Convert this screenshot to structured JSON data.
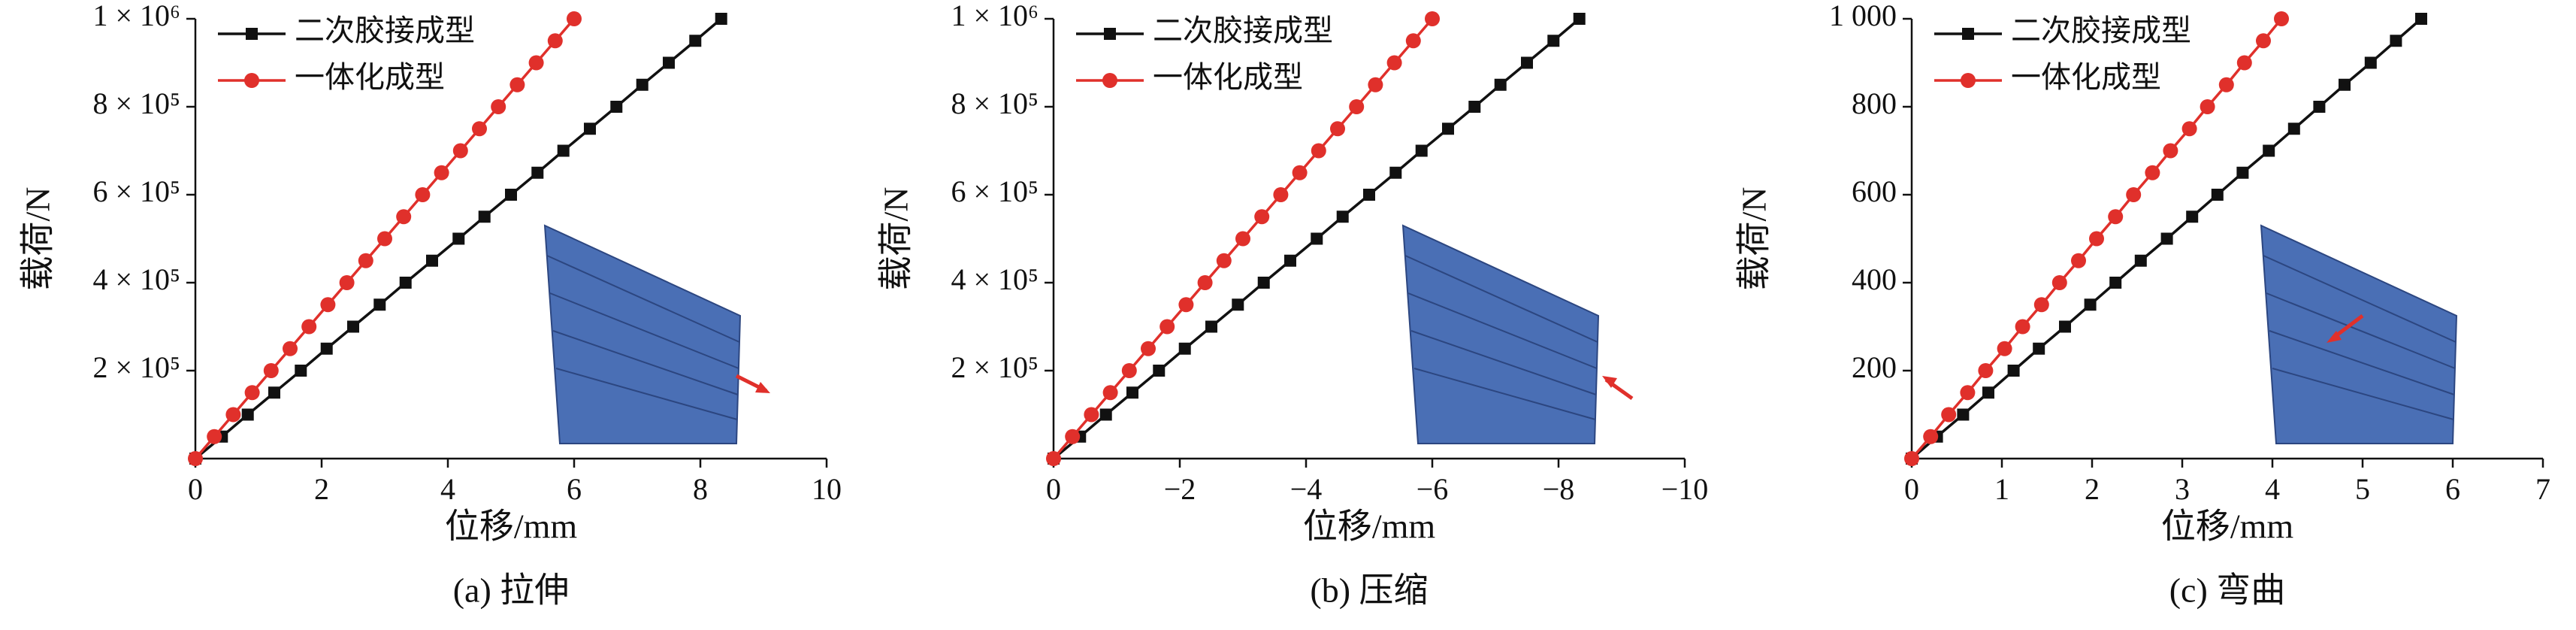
{
  "chart_data": [
    {
      "type": "line",
      "title": "(a) 拉伸",
      "xlabel": "位移/mm",
      "ylabel": "载荷/N",
      "xlim": [
        0,
        10
      ],
      "xticks": [
        0,
        2,
        4,
        6,
        8,
        10
      ],
      "ylim": [
        0,
        1000000
      ],
      "yticks": [
        {
          "value": 200000,
          "label": "2 × 10⁵"
        },
        {
          "value": 400000,
          "label": "4 × 10⁵"
        },
        {
          "value": 600000,
          "label": "6 × 10⁵"
        },
        {
          "value": 800000,
          "label": "8 × 10⁵"
        },
        {
          "value": 1000000,
          "label": "1 × 10⁶"
        }
      ],
      "series": [
        {
          "name": "二次胶接成型",
          "color": "#111111",
          "marker": "square",
          "x": [
            0,
            0.42,
            0.83,
            1.25,
            1.67,
            2.08,
            2.5,
            2.92,
            3.33,
            3.75,
            4.17,
            4.58,
            5,
            5.42,
            5.83,
            6.25,
            6.67,
            7.08,
            7.5,
            7.92,
            8.33
          ],
          "values": [
            0,
            50000,
            100000,
            150000,
            200000,
            250000,
            300000,
            350000,
            400000,
            450000,
            500000,
            550000,
            600000,
            650000,
            700000,
            750000,
            800000,
            850000,
            900000,
            950000,
            1000000
          ]
        },
        {
          "name": "一体化成型",
          "color": "#e0302b",
          "marker": "circle",
          "x": [
            0,
            0.3,
            0.6,
            0.9,
            1.2,
            1.5,
            1.8,
            2.1,
            2.4,
            2.7,
            3,
            3.3,
            3.6,
            3.9,
            4.2,
            4.5,
            4.8,
            5.1,
            5.4,
            5.7,
            6
          ],
          "values": [
            0,
            50000,
            100000,
            150000,
            200000,
            250000,
            300000,
            350000,
            400000,
            450000,
            500000,
            550000,
            600000,
            650000,
            700000,
            750000,
            800000,
            850000,
            900000,
            950000,
            1000000
          ]
        }
      ]
    },
    {
      "type": "line",
      "title": "(b) 压缩",
      "xlabel": "位移/mm",
      "ylabel": "载荷/N",
      "xlim": [
        0,
        -10
      ],
      "xticks": [
        0,
        {
          "value": -2,
          "label": "−2"
        },
        {
          "value": -4,
          "label": "−4"
        },
        {
          "value": -6,
          "label": "−6"
        },
        {
          "value": -8,
          "label": "−8"
        },
        {
          "value": -10,
          "label": "−10"
        }
      ],
      "ylim": [
        0,
        1000000
      ],
      "yticks": [
        {
          "value": 200000,
          "label": "2 × 10⁵"
        },
        {
          "value": 400000,
          "label": "4 × 10⁵"
        },
        {
          "value": 600000,
          "label": "6 × 10⁵"
        },
        {
          "value": 800000,
          "label": "8 × 10⁵"
        },
        {
          "value": 1000000,
          "label": "1 × 10⁶"
        }
      ],
      "series": [
        {
          "name": "二次胶接成型",
          "color": "#111111",
          "marker": "square",
          "x": [
            0,
            -0.42,
            -0.83,
            -1.25,
            -1.67,
            -2.08,
            -2.5,
            -2.92,
            -3.33,
            -3.75,
            -4.17,
            -4.58,
            -5,
            -5.42,
            -5.83,
            -6.25,
            -6.67,
            -7.08,
            -7.5,
            -7.92,
            -8.33
          ],
          "values": [
            0,
            50000,
            100000,
            150000,
            200000,
            250000,
            300000,
            350000,
            400000,
            450000,
            500000,
            550000,
            600000,
            650000,
            700000,
            750000,
            800000,
            850000,
            900000,
            950000,
            1000000
          ]
        },
        {
          "name": "一体化成型",
          "color": "#e0302b",
          "marker": "circle",
          "x": [
            0,
            -0.3,
            -0.6,
            -0.9,
            -1.2,
            -1.5,
            -1.8,
            -2.1,
            -2.4,
            -2.7,
            -3,
            -3.3,
            -3.6,
            -3.9,
            -4.2,
            -4.5,
            -4.8,
            -5.1,
            -5.4,
            -5.7,
            -6
          ],
          "values": [
            0,
            50000,
            100000,
            150000,
            200000,
            250000,
            300000,
            350000,
            400000,
            450000,
            500000,
            550000,
            600000,
            650000,
            700000,
            750000,
            800000,
            850000,
            900000,
            950000,
            1000000
          ]
        }
      ]
    },
    {
      "type": "line",
      "title": "(c) 弯曲",
      "xlabel": "位移/mm",
      "ylabel": "载荷/N",
      "xlim": [
        0,
        7
      ],
      "xticks": [
        0,
        1,
        2,
        3,
        4,
        5,
        6,
        7
      ],
      "ylim": [
        0,
        1000
      ],
      "yticks": [
        200,
        400,
        600,
        800,
        {
          "value": 1000,
          "label": "1 000"
        }
      ],
      "series": [
        {
          "name": "二次胶接成型",
          "color": "#111111",
          "marker": "square",
          "x": [
            0,
            0.28,
            0.57,
            0.85,
            1.13,
            1.41,
            1.7,
            1.98,
            2.26,
            2.54,
            2.83,
            3.11,
            3.39,
            3.67,
            3.96,
            4.24,
            4.52,
            4.8,
            5.09,
            5.37,
            5.65
          ],
          "values": [
            0,
            50,
            100,
            150,
            200,
            250,
            300,
            350,
            400,
            450,
            500,
            550,
            600,
            650,
            700,
            750,
            800,
            850,
            900,
            950,
            1000
          ]
        },
        {
          "name": "一体化成型",
          "color": "#e0302b",
          "marker": "circle",
          "x": [
            0,
            0.21,
            0.41,
            0.62,
            0.82,
            1.03,
            1.23,
            1.44,
            1.64,
            1.85,
            2.05,
            2.26,
            2.46,
            2.67,
            2.87,
            3.08,
            3.28,
            3.49,
            3.69,
            3.9,
            4.1
          ],
          "values": [
            0,
            50,
            100,
            150,
            200,
            250,
            300,
            350,
            400,
            450,
            500,
            550,
            600,
            650,
            700,
            750,
            800,
            850,
            900,
            950,
            1000
          ]
        }
      ]
    }
  ]
}
